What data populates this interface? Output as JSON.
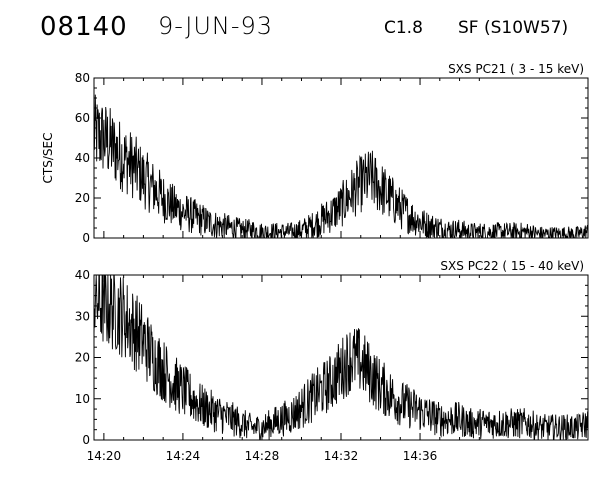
{
  "header": {
    "event_number": "08140",
    "date": "9-JUN-93",
    "flare_class": "C1.8",
    "location": "SF (S10W57)"
  },
  "chart_data": [
    {
      "type": "line",
      "title": "SXS PC21  (  3 - 15 keV)",
      "ylabel": "CTS/SEC",
      "xlabel": "",
      "ylim": [
        0,
        80
      ],
      "yticks": [
        "0",
        "20",
        "40",
        "60",
        "80"
      ],
      "xticks": [],
      "grid": false,
      "series": [
        {
          "x_minutes": [
            0,
            0.5,
            1,
            1.5,
            2,
            2.5,
            3,
            3.5,
            4,
            4.5,
            5,
            5.5,
            6,
            6.5,
            7,
            7.5,
            8,
            8.5,
            9,
            9.5,
            10,
            10.5,
            11,
            11.5,
            12,
            12.5,
            13,
            13.5,
            14,
            14.5,
            15,
            15.5,
            16,
            16.5,
            17,
            17.5,
            18,
            18.5,
            19,
            19.5,
            20,
            20.5,
            21,
            21.5,
            22,
            22.5,
            23,
            23.5,
            24,
            24.5,
            25
          ],
          "values": [
            52,
            50,
            45,
            40,
            36,
            30,
            25,
            20,
            16,
            13,
            11,
            9,
            7,
            6,
            5,
            4,
            4,
            3,
            3,
            3,
            3,
            4,
            6,
            9,
            12,
            16,
            22,
            27,
            30,
            25,
            20,
            15,
            11,
            8,
            6,
            5,
            4,
            4,
            3,
            3,
            3,
            3,
            3,
            3,
            3,
            2,
            2,
            2,
            2,
            2,
            3
          ]
        }
      ]
    },
    {
      "type": "line",
      "title": "SXS PC22  ( 15 - 40 keV)",
      "ylabel": "",
      "xlabel": "",
      "ylim": [
        0,
        40
      ],
      "yticks": [
        "0",
        "10",
        "20",
        "30",
        "40"
      ],
      "xticks": [
        "14:20",
        "14:24",
        "14:28",
        "14:32",
        "14:36"
      ],
      "grid": false,
      "series": [
        {
          "x_minutes": [
            0,
            0.5,
            1,
            1.5,
            2,
            2.5,
            3,
            3.5,
            4,
            4.5,
            5,
            5.5,
            6,
            6.5,
            7,
            7.5,
            8,
            8.5,
            9,
            9.5,
            10,
            10.5,
            11,
            11.5,
            12,
            12.5,
            13,
            13.5,
            14,
            14.5,
            15,
            15.5,
            16,
            16.5,
            17,
            17.5,
            18,
            18.5,
            19,
            19.5,
            20,
            20.5,
            21,
            21.5,
            22,
            22.5,
            23,
            23.5,
            24,
            24.5,
            25
          ],
          "values": [
            34,
            33,
            32,
            30,
            27,
            24,
            20,
            17,
            14,
            12,
            10,
            8,
            7,
            6,
            5,
            4,
            3,
            3,
            4,
            5,
            6,
            8,
            10,
            12,
            14,
            17,
            20,
            19,
            16,
            13,
            11,
            9,
            8,
            7,
            6,
            5,
            5,
            5,
            4,
            4,
            4,
            4,
            4,
            4,
            4,
            3,
            3,
            3,
            3,
            3,
            4
          ]
        }
      ]
    }
  ]
}
